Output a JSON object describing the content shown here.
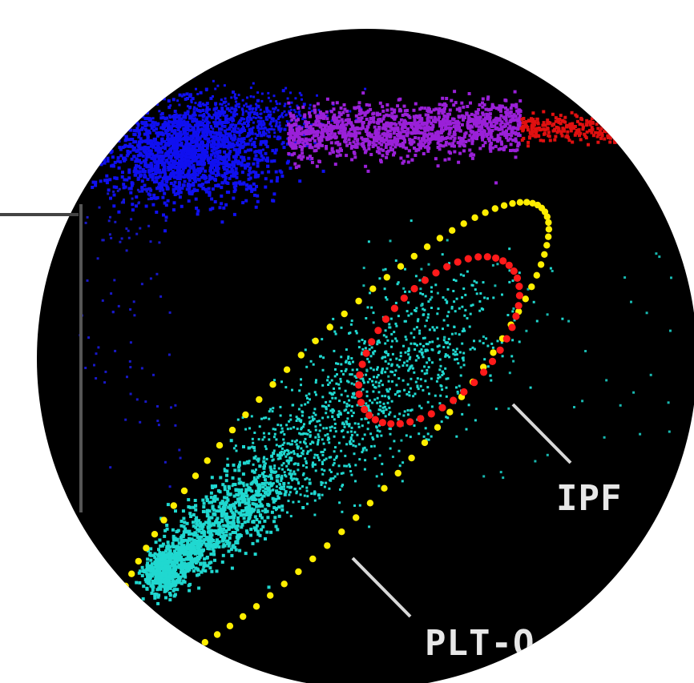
{
  "labels": {
    "ipf": "IPF",
    "plt": "PLT-O"
  },
  "colors": {
    "background": "#000000",
    "outside": "#ffffff",
    "blue_cluster": "#1010f0",
    "purple_cluster": "#9a20d8",
    "red_cluster": "#e01010",
    "cyan_cluster": "#20d8d0",
    "plt_gate": "#ffee00",
    "ipf_gate": "#ff1a1a",
    "label_text": "#e8e8e8",
    "leader_line": "#dcdcdc",
    "axis_line": "#444444"
  }
}
